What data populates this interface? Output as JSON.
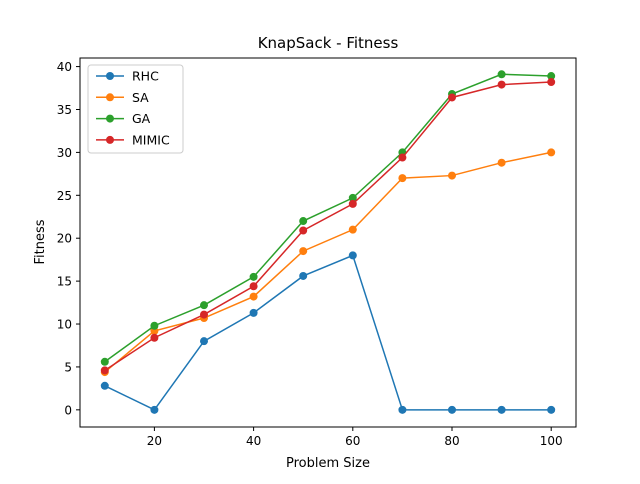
{
  "chart_data": {
    "type": "line",
    "title": "KnapSack - Fitness",
    "xlabel": "Problem Size",
    "ylabel": "Fitness",
    "x": [
      10,
      20,
      30,
      40,
      50,
      60,
      70,
      80,
      90,
      100
    ],
    "xlim": [
      5,
      105
    ],
    "ylim": [
      -2,
      41
    ],
    "xticks": [
      20,
      40,
      60,
      80,
      100
    ],
    "yticks": [
      0,
      5,
      10,
      15,
      20,
      25,
      30,
      35,
      40
    ],
    "grid": false,
    "legend_position": "top-left",
    "series": [
      {
        "name": "RHC",
        "color": "#1f77b4",
        "values": [
          2.8,
          0.0,
          8.0,
          11.3,
          15.6,
          18.0,
          0.0,
          0.0,
          0.0,
          0.0
        ]
      },
      {
        "name": "SA",
        "color": "#ff7f0e",
        "values": [
          4.4,
          9.2,
          10.7,
          13.2,
          18.5,
          21.0,
          27.0,
          27.3,
          28.8,
          30.0
        ]
      },
      {
        "name": "GA",
        "color": "#2ca02c",
        "values": [
          5.6,
          9.8,
          12.2,
          15.5,
          22.0,
          24.7,
          30.0,
          36.8,
          39.1,
          38.9
        ]
      },
      {
        "name": "MIMIC",
        "color": "#d62728",
        "values": [
          4.6,
          8.4,
          11.1,
          14.4,
          20.9,
          24.0,
          29.4,
          36.4,
          37.9,
          38.2
        ]
      }
    ]
  }
}
